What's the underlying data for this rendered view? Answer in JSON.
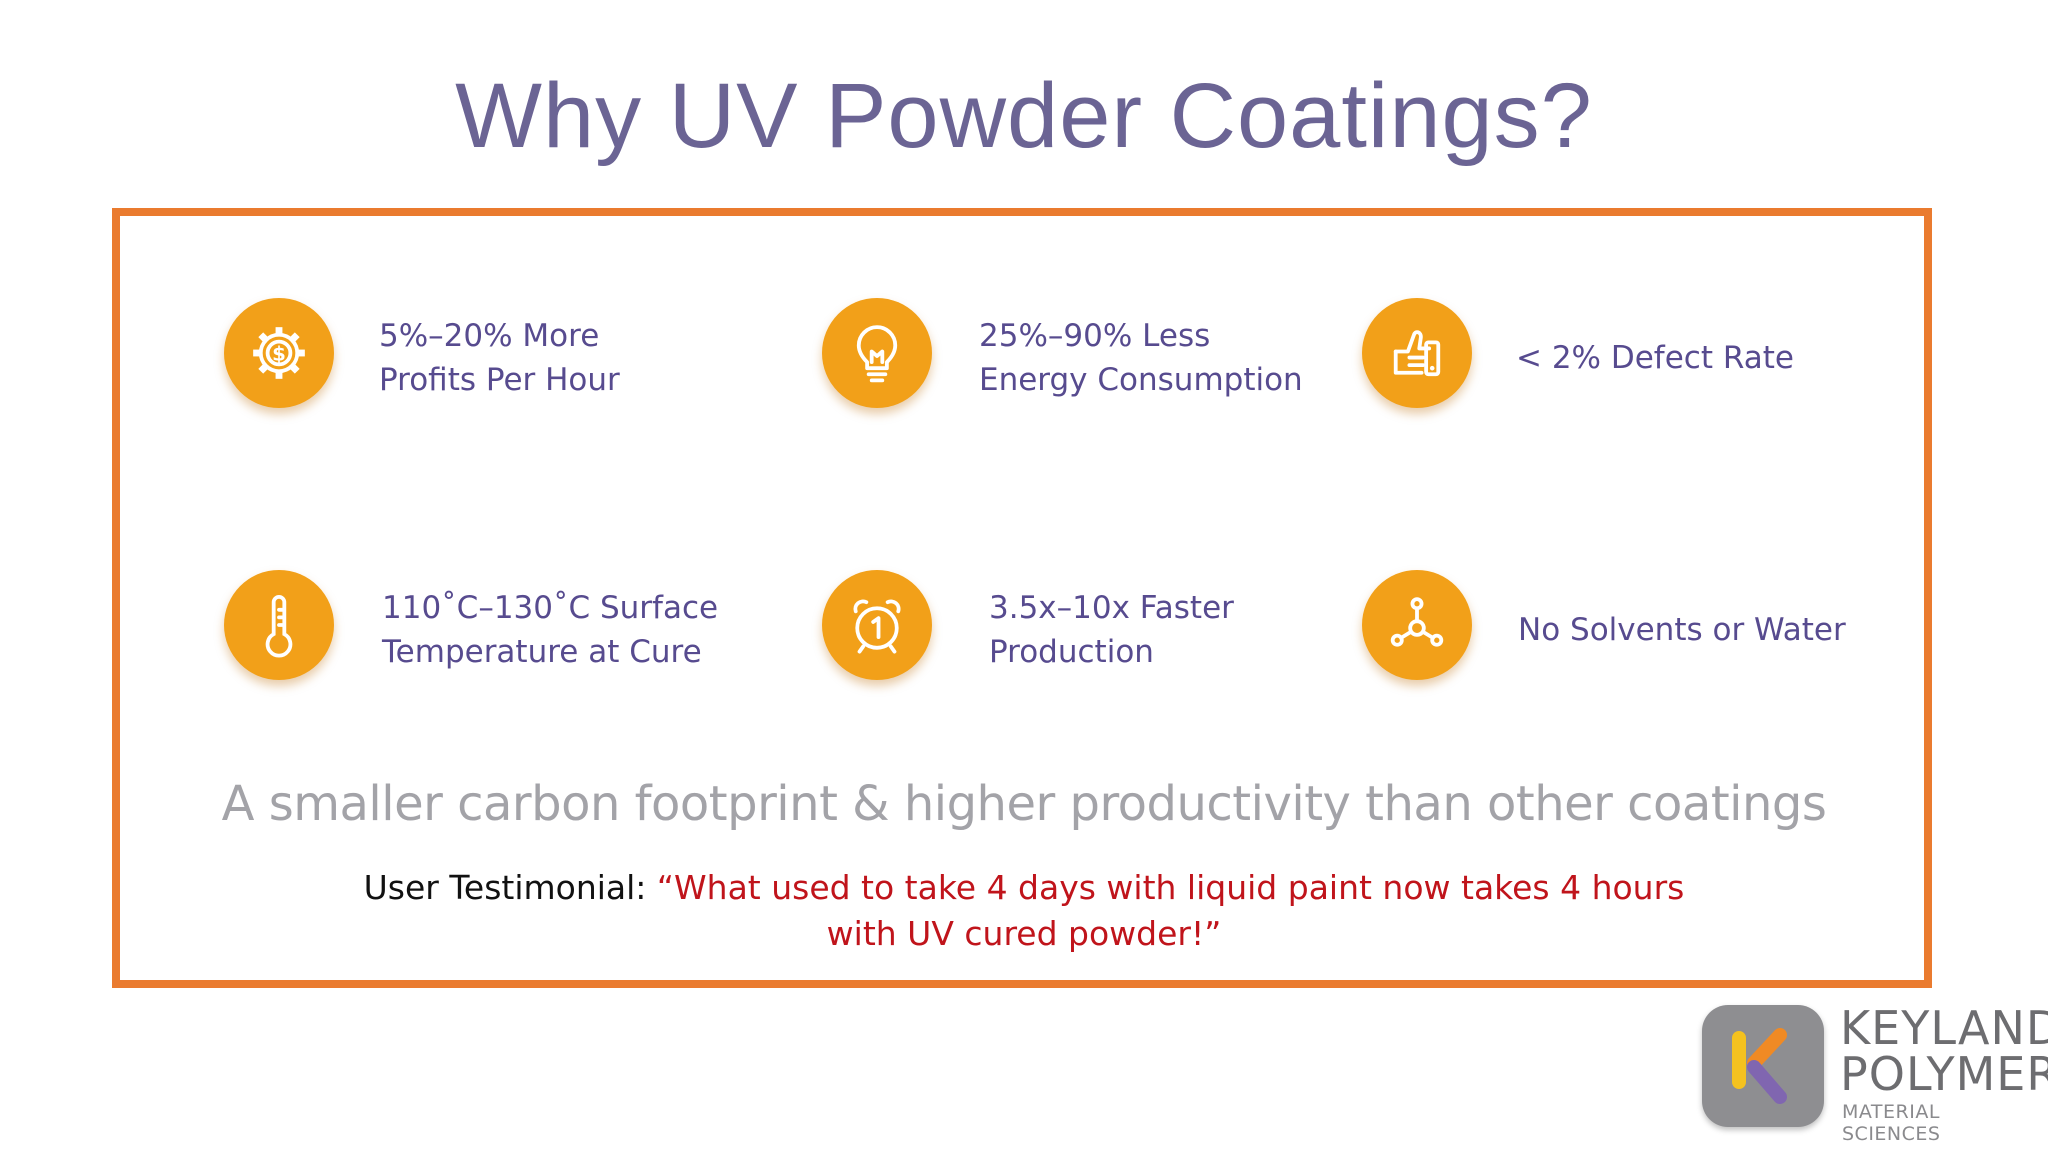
{
  "slide": {
    "title": "Why UV Powder Coatings?",
    "features": [
      {
        "icon": "gear-dollar-icon",
        "line1": "5%–20% More",
        "line2": "Profits Per Hour"
      },
      {
        "icon": "lightbulb-icon",
        "line1": "25%–90% Less",
        "line2": "Energy Consumption"
      },
      {
        "icon": "thumbs-up-icon",
        "line1": "< 2% Defect Rate",
        "line2": ""
      },
      {
        "icon": "thermometer-icon",
        "line1": "110˚C–130˚C Surface",
        "line2": "Temperature at Cure"
      },
      {
        "icon": "alarm-clock-icon",
        "line1": "3.5x–10x Faster",
        "line2": "Production"
      },
      {
        "icon": "molecule-icon",
        "line1": "No Solvents or Water",
        "line2": ""
      }
    ],
    "tagline": "A smaller carbon footprint & higher productivity than other coatings",
    "testimonial": {
      "label": "User Testimonial: ",
      "quote_line1": "“What used to take 4 days with liquid paint now takes 4 hours",
      "quote_line2": "with UV cured powder!”"
    },
    "logo": {
      "line1": "KEYLAND",
      "line2": "POLYMER",
      "line3": "MATERIAL SCIENCES"
    },
    "colors": {
      "title": "#6b6494",
      "frame": "#ea7b2f",
      "icon_bg": "#f2a019",
      "feature_text": "#574b8f",
      "tagline": "#a3a3a8",
      "quote": "#c0141b"
    }
  }
}
